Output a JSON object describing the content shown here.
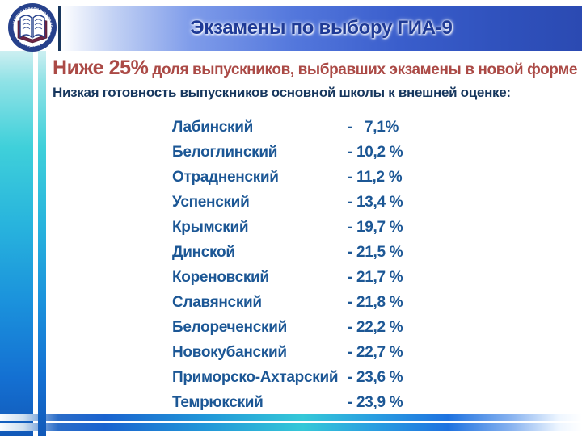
{
  "slide": {
    "title": "Экзамены по выбору ГИА-9",
    "subtitle_highlight": "Ниже 25%",
    "subtitle_rest": " доля выпускников, выбравших экзамены в новой форме",
    "statement": "Низкая готовность выпускников основной школы к внешней оценке:",
    "logo_icon": "emblem-open-book-icon"
  },
  "districts": [
    {
      "name": "Лабинский",
      "value": "-   7,1%"
    },
    {
      "name": "Белоглинский",
      "value": "- 10,2 %"
    },
    {
      "name": "Отрадненский",
      "value": "- 11,2 %"
    },
    {
      "name": "Успенский",
      "value": "- 13,4 %"
    },
    {
      "name": "Крымский",
      "value": "- 19,7 %"
    },
    {
      "name": "Динской",
      "value": "- 21,5 %"
    },
    {
      "name": "Кореновский",
      "value": "- 21,7 %"
    },
    {
      "name": "Славянский",
      "value": "- 21,8 %"
    },
    {
      "name": "Белореченский",
      "value": "- 22,2 %"
    },
    {
      "name": "Новокубанский",
      "value": "- 22,7 %"
    },
    {
      "name": "Приморско-Ахтарский",
      "value": "- 23,6 %"
    },
    {
      "name": "Темрюкский",
      "value": "- 23,9 %"
    }
  ],
  "colors": {
    "title_text": "#1e3a96",
    "subtitle_red": "#ab4a46",
    "statement_navy": "#17375e",
    "list_blue": "#1c5795",
    "accent_teal": "#35c8d8",
    "accent_blue": "#1a63cf"
  }
}
